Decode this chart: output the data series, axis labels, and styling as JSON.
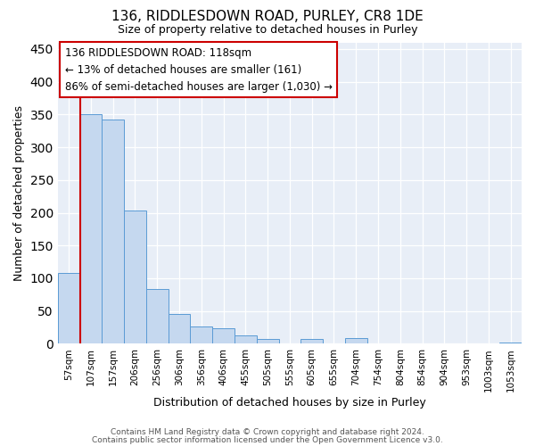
{
  "title1": "136, RIDDLESDOWN ROAD, PURLEY, CR8 1DE",
  "title2": "Size of property relative to detached houses in Purley",
  "xlabel": "Distribution of detached houses by size in Purley",
  "ylabel": "Number of detached properties",
  "categories": [
    "57sqm",
    "107sqm",
    "157sqm",
    "206sqm",
    "256sqm",
    "306sqm",
    "356sqm",
    "406sqm",
    "455sqm",
    "505sqm",
    "555sqm",
    "605sqm",
    "655sqm",
    "704sqm",
    "754sqm",
    "804sqm",
    "854sqm",
    "904sqm",
    "953sqm",
    "1003sqm",
    "1053sqm"
  ],
  "values": [
    108,
    350,
    342,
    203,
    83,
    46,
    27,
    24,
    13,
    7,
    1,
    7,
    1,
    9,
    1,
    0,
    0,
    0,
    0,
    0,
    2
  ],
  "bar_color": "#c5d8ef",
  "bar_edge_color": "#5b9bd5",
  "highlight_color": "#cc0000",
  "annotation_lines": [
    "136 RIDDLESDOWN ROAD: 118sqm",
    "← 13% of detached houses are smaller (161)",
    "86% of semi-detached houses are larger (1,030) →"
  ],
  "annotation_box_edgecolor": "#cc0000",
  "ylim": [
    0,
    460
  ],
  "yticks": [
    0,
    50,
    100,
    150,
    200,
    250,
    300,
    350,
    400,
    450
  ],
  "bg_color": "#e8eef7",
  "grid_color": "#ffffff",
  "footer1": "Contains HM Land Registry data © Crown copyright and database right 2024.",
  "footer2": "Contains public sector information licensed under the Open Government Licence v3.0."
}
